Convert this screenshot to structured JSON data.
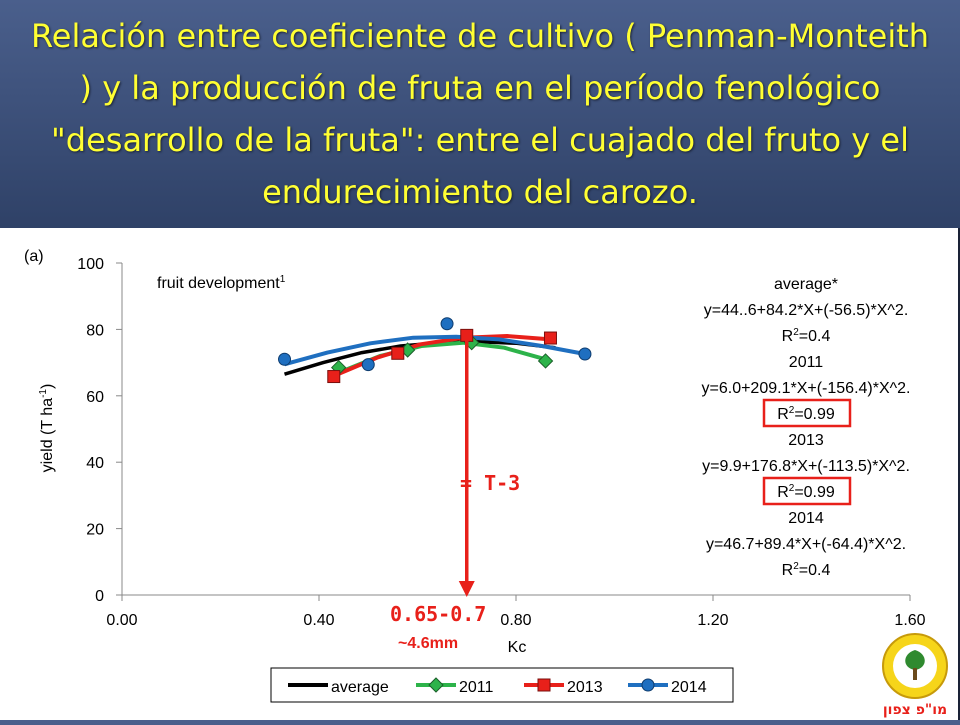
{
  "slide_title": "Relación entre coeficiente de cultivo ( Penman-Monteith ) y la producción de fruta en el período fenológico \"desarrollo de la fruta\": entre el cuajado del fruto y el endurecimiento del carozo.",
  "panel_label": "(a)",
  "phase_label": "fruit development",
  "phase_superscript": "1",
  "equations": [
    {
      "name": "average*",
      "eq": "y=44..6+84.2*X+(-56.5)*X^2.",
      "r2": "=0.4",
      "highlight": false
    },
    {
      "name": "2011",
      "eq": "y=6.0+209.1*X+(-156.4)*X^2.",
      "r2": "=0.99",
      "highlight": true
    },
    {
      "name": "2013",
      "eq": "y=9.9+176.8*X+(-113.5)*X^2.",
      "r2": "=0.99",
      "highlight": true
    },
    {
      "name": "2014",
      "eq": "y=46.7+89.4*X+(-64.4)*X^2.",
      "r2": "=0.4",
      "highlight": false
    }
  ],
  "annotations": {
    "t3_label": "= T-3",
    "kc_range": "0.65-0.7",
    "size_note": "~4.6mm",
    "arrow_color": "#e8201a"
  },
  "logo_text": "מו\"פ צפון",
  "chart_data": {
    "type": "scatter",
    "xlabel": "Kc",
    "ylabel": "yield (T ha",
    "ylabel_sup": "-1",
    "ylabel_end": ")",
    "xlim": [
      0.0,
      1.6
    ],
    "ylim": [
      0,
      100
    ],
    "x_ticks": [
      "0.00",
      "0.40",
      "0.80",
      "1.20",
      "1.60"
    ],
    "x_tick_values": [
      0.0,
      0.4,
      0.8,
      1.2,
      1.6
    ],
    "y_ticks": [
      "0",
      "20",
      "40",
      "60",
      "80",
      "100"
    ],
    "y_tick_values": [
      0,
      20,
      40,
      60,
      80,
      100
    ],
    "grid": false,
    "legend_position": "bottom",
    "arrow_x": 0.7,
    "series": [
      {
        "name": "average",
        "color": "#000000",
        "marker": "none",
        "curve": {
          "x_range": [
            0.33,
            0.88
          ],
          "y": [
            66.5,
            70.0,
            73.0,
            75.0,
            76.0,
            76.3,
            75.8,
            74.5
          ]
        }
      },
      {
        "name": "2011",
        "color": "#2db34a",
        "marker": "diamond",
        "points": [
          [
            0.44,
            68.5
          ],
          [
            0.58,
            73.8
          ],
          [
            0.71,
            76.0
          ],
          [
            0.86,
            70.5
          ]
        ],
        "curve": {
          "x_range": [
            0.44,
            0.86
          ],
          "y": [
            67.0,
            72.0,
            75.0,
            76.0,
            74.5,
            71.0
          ]
        }
      },
      {
        "name": "2013",
        "color": "#e8201a",
        "marker": "square",
        "points": [
          [
            0.43,
            65.8
          ],
          [
            0.56,
            72.8
          ],
          [
            0.7,
            78.2
          ],
          [
            0.87,
            77.4
          ]
        ],
        "curve": {
          "x_range": [
            0.43,
            0.87
          ],
          "y": [
            66.0,
            71.5,
            75.5,
            77.5,
            78.0,
            77.0
          ]
        }
      },
      {
        "name": "2014",
        "color": "#1f6fc0",
        "marker": "circle",
        "points": [
          [
            0.33,
            71.0
          ],
          [
            0.5,
            69.4
          ],
          [
            0.66,
            81.7
          ],
          [
            0.94,
            72.6
          ]
        ],
        "curve": {
          "x_range": [
            0.33,
            0.94
          ],
          "y": [
            69.5,
            73.0,
            75.8,
            77.5,
            77.8,
            77.0,
            75.0,
            72.6
          ]
        }
      }
    ]
  }
}
